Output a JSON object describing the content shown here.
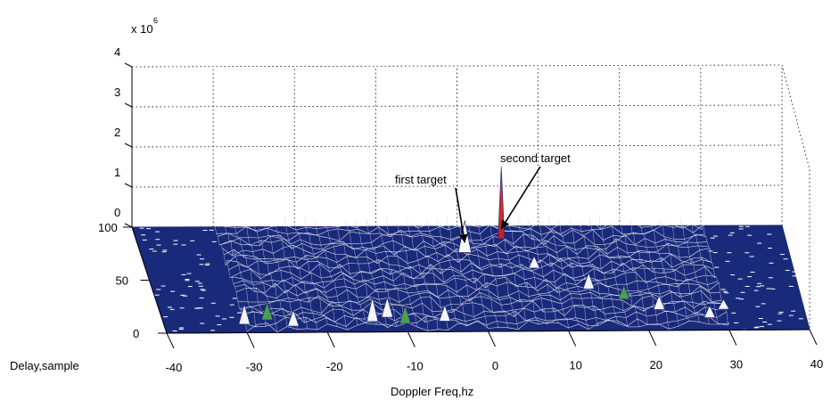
{
  "chart_data": {
    "type": "surface",
    "title": "",
    "xlabel": "Doppler Freq,hz",
    "ylabel": "Delay,sample",
    "zlabel": "",
    "x_ticks": [
      "-40",
      "-30",
      "-20",
      "-10",
      "0",
      "10",
      "20",
      "30",
      "40"
    ],
    "y_ticks": [
      "0",
      "50",
      "100"
    ],
    "z_ticks": [
      "0",
      "1",
      "2",
      "3",
      "4"
    ],
    "z_multiplier": "x 10^6",
    "z_multiplier_base": "x 10",
    "z_multiplier_exp": "6",
    "xlim": [
      -40,
      40
    ],
    "ylim": [
      0,
      100
    ],
    "zlim": [
      0,
      4
    ],
    "grid": true,
    "colors": {
      "surface": "#1a2a7a",
      "mesh": "#ffffff",
      "peak_second": "#cc2020",
      "peak_low": "#4fa24f"
    },
    "peaks": [
      {
        "x": -30,
        "y": 8,
        "z": 0.5
      },
      {
        "x": -27,
        "y": 12,
        "z": 0.45
      },
      {
        "x": -24,
        "y": 6,
        "z": 0.4
      },
      {
        "x": -14,
        "y": 10,
        "z": 0.6
      },
      {
        "x": -12,
        "y": 14,
        "z": 0.5
      },
      {
        "x": -10,
        "y": 8,
        "z": 0.45
      },
      {
        "x": -5,
        "y": 10,
        "z": 0.4
      },
      {
        "x": 8,
        "y": 60,
        "z": 0.3
      },
      {
        "x": 14,
        "y": 40,
        "z": 0.4
      },
      {
        "x": 18,
        "y": 30,
        "z": 0.35
      },
      {
        "x": 22,
        "y": 20,
        "z": 0.35
      },
      {
        "x": 28,
        "y": 12,
        "z": 0.3
      },
      {
        "x": 30,
        "y": 20,
        "z": 0.25
      }
    ],
    "targets": [
      {
        "name": "first target",
        "x": 0,
        "y": 75,
        "z": 0.8
      },
      {
        "name": "second target",
        "x": 5,
        "y": 88,
        "z": 1.8
      }
    ],
    "annotations": [
      "first target",
      "second target"
    ]
  }
}
